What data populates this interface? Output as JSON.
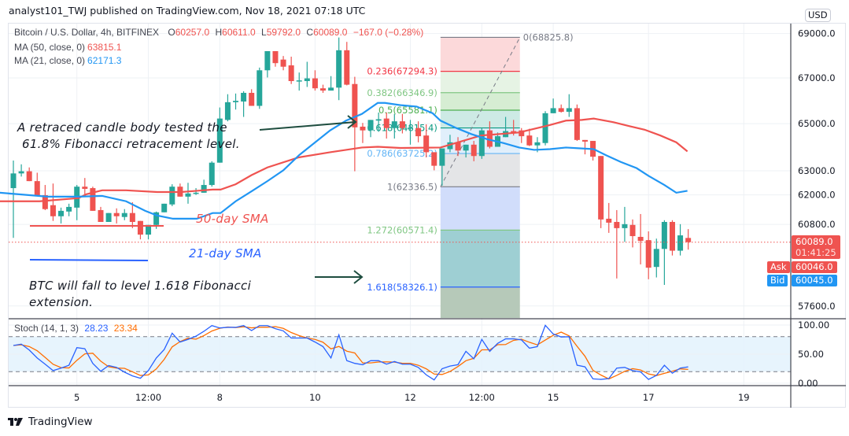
{
  "publisher_line": "analyst101_TWJ published on TradingView.com, Nov 18, 2021 07:18 UTC",
  "legend": {
    "symbol": "Bitcoin / U.S. Dollar, 4h, BITFINEX",
    "open_label": "O",
    "open": "60257.0",
    "high_label": "H",
    "high": "60611.0",
    "low_label": "L",
    "low": "59792.0",
    "close_label": "C",
    "close": "60089.0",
    "change": "−167.0 (−0.28%)",
    "ma50_label": "MA (50, close, 0)",
    "ma50_value": "63815.1",
    "ma21_label": "MA (21, close, 0)",
    "ma21_value": "62171.3",
    "stoch_label": "Stoch (14, 1, 3)",
    "stoch_k": "28.23",
    "stoch_d": "23.34"
  },
  "annotations": {
    "retrace_line1": "A retraced candle body tested the",
    "retrace_line2": "61.8% Fibonacci retracement level.",
    "sma50": "50-day SMA",
    "sma21": "21-day SMA",
    "fall_line1": "BTC will fall to  level 1.618 Fibonacci",
    "fall_line2": "extension."
  },
  "price_axis": {
    "currency": "USD",
    "last_price": "60089.0",
    "countdown": "01:41:25",
    "ask_label": "Ask",
    "ask": "60046.0",
    "bid_label": "Bid",
    "bid": "60045.0"
  },
  "footer": {
    "brand": "TradingView"
  },
  "colors": {
    "up": "#26a69a",
    "down": "#ef5350",
    "ma50": "#ef5350",
    "ma21": "#2196f3",
    "stoch_k": "#2962ff",
    "stoch_d": "#ff6d00"
  },
  "chart_data": [
    {
      "type": "candlestick",
      "title": "Bitcoin / U.S. Dollar, 4h, BITFINEX",
      "y_scale": "log",
      "grid": true,
      "x_ticks": [
        {
          "label": "5",
          "index": 8
        },
        {
          "label": "12:00",
          "index": 17
        },
        {
          "label": "8",
          "index": 26
        },
        {
          "label": "10",
          "index": 38
        },
        {
          "label": "12",
          "index": 50
        },
        {
          "label": "12:00",
          "index": 59
        },
        {
          "label": "15",
          "index": 68
        },
        {
          "label": "17",
          "index": 80
        },
        {
          "label": "19",
          "index": 92
        }
      ],
      "y_ticks": [
        "69000.0",
        "67000.0",
        "65000.0",
        "63000.0",
        "62000.0",
        "60800.0",
        "57600.0"
      ],
      "ohlc": [
        [
          62280,
          63430,
          60260,
          62890
        ],
        [
          62890,
          63270,
          62760,
          62980
        ],
        [
          62980,
          63140,
          62570,
          62570
        ],
        [
          62570,
          62920,
          61960,
          61960
        ],
        [
          61990,
          62410,
          61380,
          61420
        ],
        [
          61580,
          62470,
          60940,
          61130
        ],
        [
          61130,
          61480,
          60840,
          61350
        ],
        [
          61320,
          61640,
          61130,
          61510
        ],
        [
          61480,
          62410,
          60970,
          62340
        ],
        [
          62340,
          62700,
          62020,
          62250
        ],
        [
          62280,
          62340,
          61350,
          61350
        ],
        [
          61380,
          61510,
          60900,
          60900
        ],
        [
          60900,
          61260,
          60900,
          61260
        ],
        [
          61260,
          61450,
          60840,
          61130
        ],
        [
          61100,
          61420,
          60970,
          61260
        ],
        [
          61260,
          61700,
          60650,
          60900
        ],
        [
          60940,
          60940,
          60200,
          60390
        ],
        [
          60390,
          60780,
          60200,
          60780
        ],
        [
          60780,
          61320,
          60620,
          61290
        ],
        [
          61290,
          61640,
          61290,
          61640
        ],
        [
          61610,
          62440,
          61540,
          62340
        ],
        [
          62340,
          62470,
          61930,
          61930
        ],
        [
          61930,
          62500,
          61640,
          62060
        ],
        [
          62060,
          62280,
          62000,
          62090
        ],
        [
          62090,
          62630,
          62090,
          62410
        ],
        [
          62410,
          63400,
          62340,
          63340
        ],
        [
          63340,
          65700,
          63340,
          65220
        ],
        [
          65160,
          66280,
          65100,
          65930
        ],
        [
          65930,
          66310,
          65610,
          65990
        ],
        [
          65960,
          66410,
          65290,
          66340
        ],
        [
          66340,
          66500,
          65770,
          65770
        ],
        [
          65770,
          67460,
          65640,
          67340
        ],
        [
          67340,
          68200,
          67020,
          68200
        ],
        [
          68200,
          68200,
          67500,
          67660
        ],
        [
          67820,
          67980,
          67340,
          67500
        ],
        [
          67560,
          67950,
          66730,
          66860
        ],
        [
          66860,
          67240,
          66440,
          66890
        ],
        [
          66860,
          67720,
          66600,
          66980
        ],
        [
          66980,
          67340,
          66440,
          66540
        ],
        [
          66540,
          66700,
          66340,
          66440
        ],
        [
          66440,
          67080,
          66440,
          66570
        ],
        [
          66570,
          68820,
          66020,
          68240
        ],
        [
          68240,
          68620,
          66670,
          66700
        ],
        [
          66730,
          67050,
          62980,
          64840
        ],
        [
          64870,
          65030,
          64170,
          64710
        ],
        [
          64710,
          65160,
          64420,
          65160
        ],
        [
          65130,
          65480,
          64650,
          65190
        ],
        [
          65220,
          65480,
          64360,
          64810
        ],
        [
          64810,
          65420,
          64360,
          65100
        ],
        [
          65100,
          65420,
          64580,
          64810
        ],
        [
          64800,
          65160,
          64100,
          64830
        ],
        [
          64810,
          65100,
          64200,
          64460
        ],
        [
          64490,
          64970,
          63560,
          63780
        ],
        [
          63780,
          63780,
          63020,
          63210
        ],
        [
          63210,
          63940,
          62380,
          63940
        ],
        [
          63910,
          64520,
          63780,
          64200
        ],
        [
          64200,
          64420,
          63620,
          63850
        ],
        [
          63850,
          64100,
          63560,
          64100
        ],
        [
          64100,
          64260,
          63400,
          63620
        ],
        [
          63620,
          64810,
          63500,
          64710
        ],
        [
          64710,
          65100,
          63940,
          64010
        ],
        [
          64010,
          64620,
          64010,
          64460
        ],
        [
          64420,
          65290,
          64420,
          64680
        ],
        [
          64680,
          65160,
          64490,
          64620
        ],
        [
          64710,
          64810,
          64170,
          64460
        ],
        [
          64490,
          64780,
          64040,
          64070
        ],
        [
          64070,
          64420,
          63780,
          64200
        ],
        [
          64170,
          65540,
          64070,
          65450
        ],
        [
          65450,
          66090,
          65450,
          65670
        ],
        [
          65670,
          65830,
          65480,
          65510
        ],
        [
          65510,
          66280,
          65290,
          65670
        ],
        [
          65670,
          65830,
          64260,
          64300
        ],
        [
          64300,
          64300,
          63690,
          64230
        ],
        [
          64260,
          64260,
          63430,
          63590
        ],
        [
          63620,
          63620,
          60650,
          61000
        ],
        [
          61030,
          61670,
          60460,
          60870
        ],
        [
          60900,
          61380,
          58660,
          60650
        ],
        [
          60650,
          61510,
          60100,
          60810
        ],
        [
          60780,
          61000,
          59880,
          60330
        ],
        [
          60300,
          61220,
          59210,
          60140
        ],
        [
          60170,
          60520,
          58630,
          59080
        ],
        [
          59110,
          60230,
          58700,
          59820
        ],
        [
          59820,
          60970,
          58410,
          60900
        ],
        [
          60900,
          60970,
          59560,
          59750
        ],
        [
          59750,
          60810,
          59560,
          60360
        ],
        [
          60257,
          60611,
          59792,
          60089
        ]
      ],
      "series": [
        {
          "name": "MA (50, close, 0)",
          "points": [
            [
              -1.7,
              61740
            ],
            [
              3.3,
              61740
            ],
            [
              8.2,
              61870
            ],
            [
              9.2,
              62030
            ],
            [
              11.2,
              62190
            ],
            [
              14.2,
              62190
            ],
            [
              18.1,
              62120
            ],
            [
              21.1,
              62120
            ],
            [
              25.1,
              62220
            ],
            [
              26.1,
              62220
            ],
            [
              28,
              62440
            ],
            [
              30,
              62820
            ],
            [
              32,
              63140
            ],
            [
              35.9,
              63560
            ],
            [
              39.9,
              63780
            ],
            [
              43.9,
              63980
            ],
            [
              45.9,
              64010
            ],
            [
              48.8,
              63960
            ],
            [
              53.8,
              63980
            ],
            [
              58.9,
              64490
            ],
            [
              63.7,
              64620
            ],
            [
              67.6,
              64940
            ],
            [
              69.6,
              65130
            ],
            [
              71.6,
              65160
            ],
            [
              73.1,
              65220
            ],
            [
              75.6,
              65060
            ],
            [
              77.5,
              64900
            ],
            [
              79.5,
              64740
            ],
            [
              81.5,
              64490
            ],
            [
              83.5,
              64200
            ],
            [
              84.9,
              63815
            ]
          ]
        },
        {
          "name": "MA (21, close, 0)",
          "points": [
            [
              -1.7,
              62090
            ],
            [
              4.3,
              61930
            ],
            [
              8.2,
              61930
            ],
            [
              11.2,
              61960
            ],
            [
              14.2,
              61740
            ],
            [
              16.6,
              61350
            ],
            [
              18.1,
              61160
            ],
            [
              20.1,
              61030
            ],
            [
              23.1,
              61030
            ],
            [
              25.1,
              61260
            ],
            [
              26.1,
              61260
            ],
            [
              28,
              61740
            ],
            [
              30,
              62150
            ],
            [
              32,
              62570
            ],
            [
              34,
              63020
            ],
            [
              36,
              63660
            ],
            [
              37.9,
              64170
            ],
            [
              39.9,
              64710
            ],
            [
              41.9,
              65130
            ],
            [
              43.9,
              65420
            ],
            [
              45.9,
              65900
            ],
            [
              46.8,
              65900
            ],
            [
              48.8,
              65800
            ],
            [
              50.8,
              65740
            ],
            [
              52.8,
              65450
            ],
            [
              53.8,
              65130
            ],
            [
              55.8,
              64810
            ],
            [
              57.7,
              64550
            ],
            [
              59.7,
              64330
            ],
            [
              61.7,
              64170
            ],
            [
              63.7,
              63980
            ],
            [
              65.6,
              63880
            ],
            [
              67.6,
              63910
            ],
            [
              69.6,
              63980
            ],
            [
              71.6,
              63940
            ],
            [
              73.1,
              63910
            ],
            [
              74.6,
              63660
            ],
            [
              76.5,
              63370
            ],
            [
              78.5,
              63110
            ],
            [
              80,
              62790
            ],
            [
              82,
              62410
            ],
            [
              83.5,
              62090
            ],
            [
              84.9,
              62171
            ]
          ]
        }
      ],
      "fibonacci": {
        "from_index": 54,
        "to_index": 64,
        "levels": [
          {
            "level": "0",
            "price": 68825.8,
            "label": "0(68825.8)",
            "line": "#787b86",
            "fill": "#fcd9da"
          },
          {
            "level": "0.236",
            "price": 67294.3,
            "label": "0.236(67294.3)",
            "line": "#f23645",
            "fill": "#e6f3e4"
          },
          {
            "level": "0.382",
            "price": 66346.9,
            "label": "0.382(66346.9)",
            "line": "#81c784",
            "fill": "#d6edd3"
          },
          {
            "level": "0.5",
            "price": 65581.1,
            "label": "0.5(65581.1)",
            "line": "#4caf50",
            "fill": "#cdeae5"
          },
          {
            "level": "0.618",
            "price": 64815.4,
            "label": "0.618(64815.4)",
            "line": "#089981",
            "fill": "#e1effb"
          },
          {
            "level": "0.786",
            "price": 63725.2,
            "label": "0.786(63725.2)",
            "line": "#64b5f6",
            "fill": "#e4e5e7"
          },
          {
            "level": "1",
            "price": 62336.5,
            "label": "1(62336.5)",
            "line": "#787b86",
            "fill": "#d1ddfb"
          },
          {
            "level": "1.272",
            "price": 60571.4,
            "label": "1.272(60571.4)",
            "line": "#81c784",
            "fill": "#9ecfd3"
          },
          {
            "level": "1.618",
            "price": 58326.1,
            "label": "1.618(58326.1)",
            "line": "#2962ff",
            "fill": "#b6c9b9"
          }
        ]
      }
    },
    {
      "type": "line",
      "title": "Stoch (14, 1, 3)",
      "ylim": [
        0,
        100
      ],
      "y_ticks": [
        "100.00",
        "50.00",
        "0.00"
      ],
      "bands": [
        20,
        80
      ],
      "series": [
        {
          "name": "%K",
          "values": [
            64.9,
            67.2,
            57.1,
            43.4,
            32.8,
            21.8,
            26,
            31,
            61.2,
            59.4,
            34.2,
            20.5,
            30.5,
            27.3,
            19.1,
            12.7,
            8.6,
            21.8,
            43.4,
            58,
            86,
            70.8,
            75.4,
            80.9,
            89.2,
            99,
            95,
            96,
            96,
            99,
            90.5,
            99,
            99,
            93.7,
            90,
            77.7,
            77.7,
            77.7,
            70.8,
            63,
            43.4,
            83.2,
            38.8,
            34.2,
            31.9,
            38.8,
            38.8,
            32.8,
            37.4,
            32.8,
            32.8,
            27.3,
            14.5,
            5.8,
            25,
            29.6,
            31.9,
            54.8,
            42,
            75.4,
            54.8,
            68.5,
            76.3,
            76.3,
            74.5,
            60.3,
            63,
            99.5,
            84.6,
            79.5,
            80,
            31,
            28.2,
            7.6,
            6.7,
            8.1,
            26,
            27.3,
            21.8,
            19.5,
            6.7,
            13.6,
            31,
            17.3,
            26,
            28.23
          ]
        }
      ]
    }
  ]
}
